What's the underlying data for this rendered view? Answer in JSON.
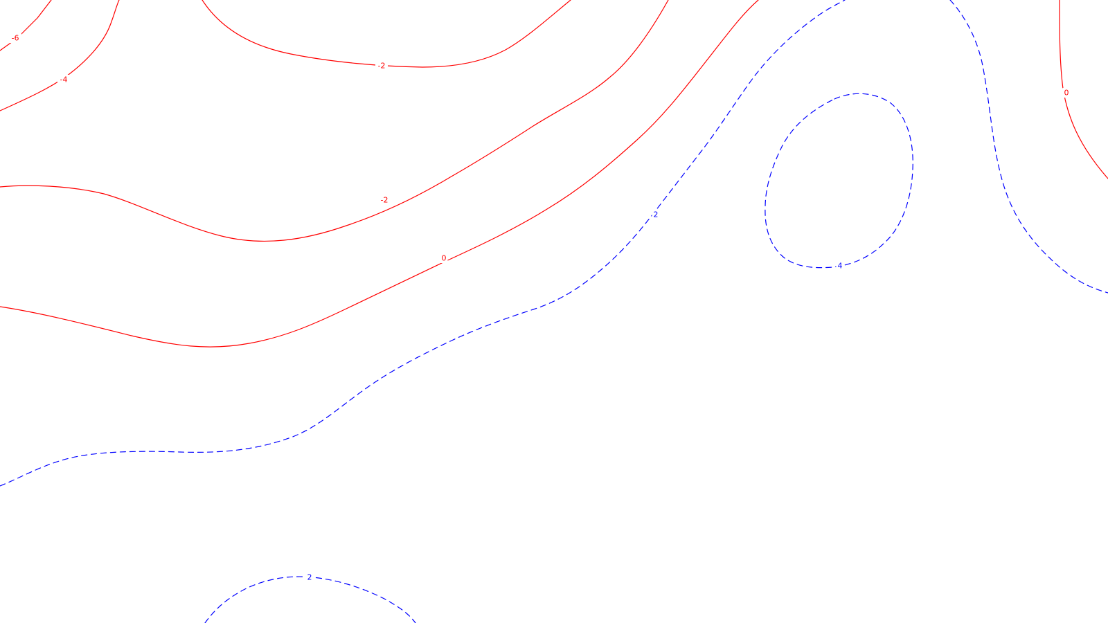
{
  "map": {
    "colors": {
      "background": "#ffffff",
      "negative_and_zero": "#ff0000",
      "positive": "#0000ff"
    },
    "line_styles": {
      "negative_and_zero": "solid",
      "positive": "dashed"
    },
    "contours": [
      {
        "id": "neg6-top-left",
        "level": -6,
        "label": "-6",
        "style": "solid",
        "color": "#ff0000"
      },
      {
        "id": "neg4-top-left",
        "level": -4,
        "label": "-4",
        "style": "solid",
        "color": "#ff0000"
      },
      {
        "id": "neg2-top",
        "level": -2,
        "label": "-2",
        "style": "solid",
        "color": "#ff0000"
      },
      {
        "id": "neg2-middle",
        "level": -2,
        "label": "-2",
        "style": "solid",
        "color": "#ff0000"
      },
      {
        "id": "zero-main",
        "level": 0,
        "label": "0",
        "style": "solid",
        "color": "#ff0000"
      },
      {
        "id": "zero-right-edge",
        "level": 0,
        "label": "0",
        "style": "solid",
        "color": "#ff0000"
      },
      {
        "id": "pos2-main",
        "level": 2,
        "label": "2",
        "style": "dashed",
        "color": "#0000ff"
      },
      {
        "id": "pos4-loop",
        "level": 4,
        "label": "4",
        "style": "dashed",
        "color": "#0000ff"
      },
      {
        "id": "pos2-right",
        "level": 2,
        "label": "",
        "style": "dashed",
        "color": "#0000ff"
      },
      {
        "id": "pos2-bottom",
        "level": 2,
        "label": "2",
        "style": "dashed",
        "color": "#0000ff"
      }
    ]
  }
}
